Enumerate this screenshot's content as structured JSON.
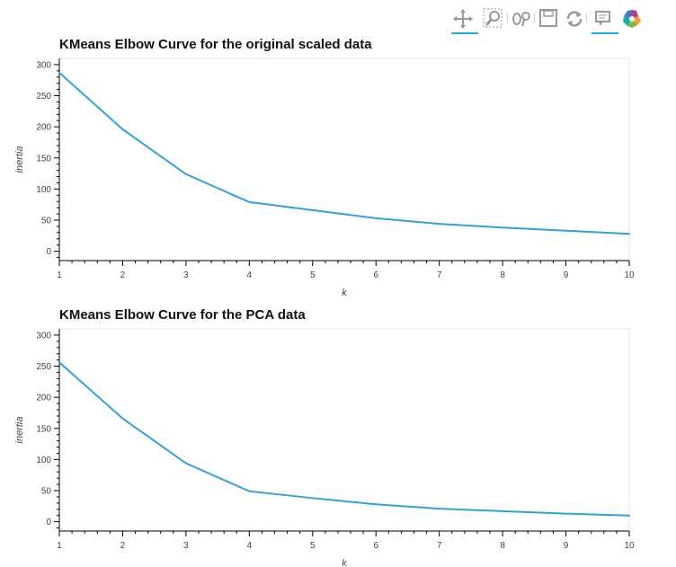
{
  "toolbar": {
    "tools": [
      {
        "icon": "pan-icon",
        "active": true
      },
      {
        "icon": "box-zoom-icon",
        "active": false
      },
      {
        "icon": "wheel-zoom-icon",
        "active": false
      },
      {
        "icon": "save-icon",
        "active": false
      },
      {
        "icon": "reset-icon",
        "active": false
      },
      {
        "icon": "hover-icon",
        "active": true
      },
      {
        "icon": "bokeh-logo-icon",
        "active": false
      }
    ],
    "accent": "#26aae1"
  },
  "chart_data": [
    {
      "type": "line",
      "title": "KMeans Elbow Curve for the original scaled data",
      "xlabel": "k",
      "ylabel": "inertia",
      "x": [
        1,
        2,
        3,
        4,
        5,
        6,
        7,
        8,
        9,
        10
      ],
      "series": [
        {
          "values": [
            287,
            196,
            124,
            79,
            66,
            53,
            44,
            38,
            33,
            28
          ],
          "color": "#30a2da"
        }
      ],
      "xlim": [
        1,
        10
      ],
      "ylim": [
        -15,
        310
      ],
      "yticks": [
        0,
        50,
        100,
        150,
        200,
        250,
        300
      ],
      "xticks": [
        1,
        2,
        3,
        4,
        5,
        6,
        7,
        8,
        9,
        10
      ],
      "grid": false
    },
    {
      "type": "line",
      "title": "KMeans Elbow Curve for the PCA data",
      "xlabel": "k",
      "ylabel": "inertia",
      "x": [
        1,
        2,
        3,
        4,
        5,
        6,
        7,
        8,
        9,
        10
      ],
      "series": [
        {
          "values": [
            256,
            166,
            94,
            49,
            38,
            28,
            21,
            17,
            13,
            10
          ],
          "color": "#30a2da"
        }
      ],
      "xlim": [
        1,
        10
      ],
      "ylim": [
        -15,
        310
      ],
      "yticks": [
        0,
        50,
        100,
        150,
        200,
        250,
        300
      ],
      "xticks": [
        1,
        2,
        3,
        4,
        5,
        6,
        7,
        8,
        9,
        10
      ],
      "grid": false
    }
  ]
}
